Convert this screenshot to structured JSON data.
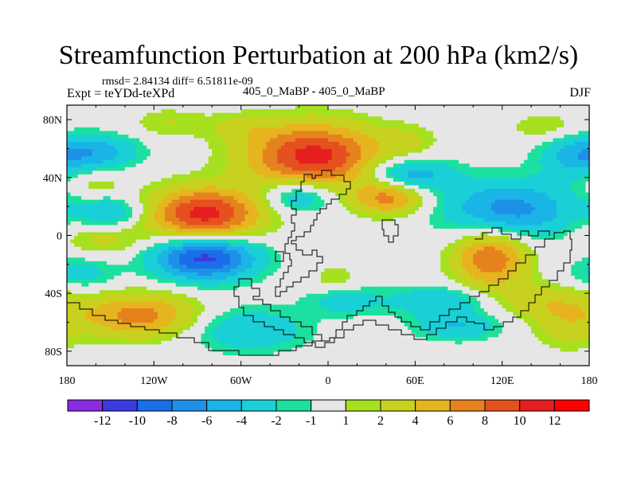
{
  "chart_data": {
    "type": "heatmap",
    "title": "Streamfunction Perturbation at 200 hPa (km2/s)",
    "stats_text": "rmsd= 2.84134 diff= 6.51811e-09",
    "left_label": "Expt = teYDd-teXPd",
    "center_label": "405_0_MaBP - 405_0_MaBP",
    "right_label": "DJF",
    "x_range": [
      -180,
      180
    ],
    "y_range": [
      -90,
      90
    ],
    "x_ticks": [
      {
        "value": -180,
        "label": "180"
      },
      {
        "value": -120,
        "label": "120W"
      },
      {
        "value": -60,
        "label": "60W"
      },
      {
        "value": 0,
        "label": "0"
      },
      {
        "value": 60,
        "label": "60E"
      },
      {
        "value": 120,
        "label": "120E"
      },
      {
        "value": 180,
        "label": "180"
      }
    ],
    "y_ticks": [
      {
        "value": 80,
        "label": "80N"
      },
      {
        "value": 40,
        "label": "40N"
      },
      {
        "value": 0,
        "label": "0"
      },
      {
        "value": -40,
        "label": "40S"
      },
      {
        "value": -80,
        "label": "80S"
      }
    ],
    "contour_levels": [
      "-12",
      "-10",
      "-8",
      "-6",
      "-4",
      "-2",
      "-1",
      "1",
      "2",
      "4",
      "6",
      "8",
      "10",
      "12"
    ],
    "colors": [
      "#8a2be2",
      "#3a3ae0",
      "#1a6ee8",
      "#1e90e8",
      "#1ab4e6",
      "#19d0d6",
      "#1ce0a0",
      "#e6e6e6",
      "#a6e01e",
      "#c8d21e",
      "#e6b41e",
      "#e6821e",
      "#e6501e",
      "#e61e1e",
      "#ff0000"
    ],
    "anomaly_centers": [
      {
        "lon": -10,
        "lat": 55,
        "value": 11,
        "rlon": 45,
        "rlat": 22
      },
      {
        "lon": -85,
        "lat": 15,
        "value": 11,
        "rlon": 38,
        "rlat": 18
      },
      {
        "lon": -130,
        "lat": -55,
        "value": 7,
        "rlon": 40,
        "rlat": 15
      },
      {
        "lon": 42,
        "lat": 27,
        "value": 7,
        "rlon": 25,
        "rlat": 12
      },
      {
        "lon": 112,
        "lat": -15,
        "value": 8,
        "rlon": 25,
        "rlat": 20
      },
      {
        "lon": 140,
        "lat": -45,
        "value": 3,
        "rlon": 40,
        "rlat": 12
      },
      {
        "lon": 165,
        "lat": -60,
        "value": 3,
        "rlon": 25,
        "rlat": 18
      },
      {
        "lon": -155,
        "lat": 0,
        "value": 3,
        "rlon": 30,
        "rlat": 15
      },
      {
        "lon": 55,
        "lat": 65,
        "value": 2,
        "rlon": 20,
        "rlat": 12
      },
      {
        "lon": 150,
        "lat": 75,
        "value": 2,
        "rlon": 25,
        "rlat": 10
      },
      {
        "lon": -110,
        "lat": 78,
        "value": 2,
        "rlon": 25,
        "rlat": 10
      },
      {
        "lon": -60,
        "lat": 75,
        "value": 2,
        "rlon": 25,
        "rlat": 10
      },
      {
        "lon": -160,
        "lat": 35,
        "value": 2,
        "rlon": 20,
        "rlat": 10
      },
      {
        "lon": 5,
        "lat": -30,
        "value": 2,
        "rlon": 15,
        "rlat": 10
      },
      {
        "lon": -85,
        "lat": -15,
        "value": -11,
        "rlon": 35,
        "rlat": 15
      },
      {
        "lon": 125,
        "lat": 18,
        "value": -7,
        "rlon": 45,
        "rlat": 20
      },
      {
        "lon": 55,
        "lat": 42,
        "value": -6,
        "rlon": 30,
        "rlat": 12
      },
      {
        "lon": -20,
        "lat": 28,
        "value": -5,
        "rlon": 25,
        "rlat": 12
      },
      {
        "lon": -150,
        "lat": 15,
        "value": -5,
        "rlon": 25,
        "rlat": 12
      },
      {
        "lon": -160,
        "lat": 58,
        "value": -5,
        "rlon": 30,
        "rlat": 12
      },
      {
        "lon": 170,
        "lat": 55,
        "value": -4,
        "rlon": 25,
        "rlat": 15
      },
      {
        "lon": -55,
        "lat": -65,
        "value": -4,
        "rlon": 40,
        "rlat": 15
      },
      {
        "lon": 80,
        "lat": -45,
        "value": -4,
        "rlon": 40,
        "rlat": 10
      },
      {
        "lon": 90,
        "lat": -62,
        "value": -4,
        "rlon": 30,
        "rlat": 10
      },
      {
        "lon": 10,
        "lat": -45,
        "value": -3,
        "rlon": 25,
        "rlat": 10
      },
      {
        "lon": -170,
        "lat": -25,
        "value": -3,
        "rlon": 25,
        "rlat": 12
      }
    ]
  }
}
